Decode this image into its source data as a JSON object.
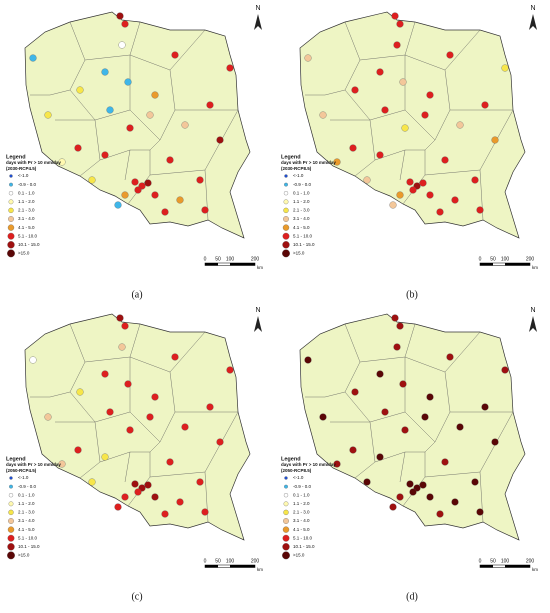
{
  "north": "N",
  "legend": {
    "title": "Legend",
    "subtitle": "days with Pr > 10 mm/day",
    "items": [
      {
        "label": "<-1.0",
        "color": "#1f4fd1"
      },
      {
        "label": "-0.9 - 0.0",
        "color": "#3fb6e8"
      },
      {
        "label": "0.1 - 1.0",
        "color": "#ffffff"
      },
      {
        "label": "1.1 - 2.0",
        "color": "#fff9b0"
      },
      {
        "label": "2.1 - 3.0",
        "color": "#f7e64a"
      },
      {
        "label": "3.1 - 4.0",
        "color": "#f3c79a"
      },
      {
        "label": "4.1 - 5.0",
        "color": "#e99a2c"
      },
      {
        "label": "5.1 - 10.0",
        "color": "#dd1f1f"
      },
      {
        "label": "10.1 - 15.0",
        "color": "#9e1010"
      },
      {
        "label": ">15.0",
        "color": "#5a0606"
      }
    ]
  },
  "scale_bar": {
    "ticks": [
      "0",
      "50",
      "100",
      "200"
    ],
    "unit": "km"
  },
  "panels": [
    {
      "label": "(a)",
      "scenario": "(2030-RCP4.5)"
    },
    {
      "label": "(b)",
      "scenario": "(2030-RCP8.5)"
    },
    {
      "label": "(c)",
      "scenario": "(2050-RCP4.5)"
    },
    {
      "label": "(d)",
      "scenario": "(2050-RCP8.5)"
    }
  ]
}
